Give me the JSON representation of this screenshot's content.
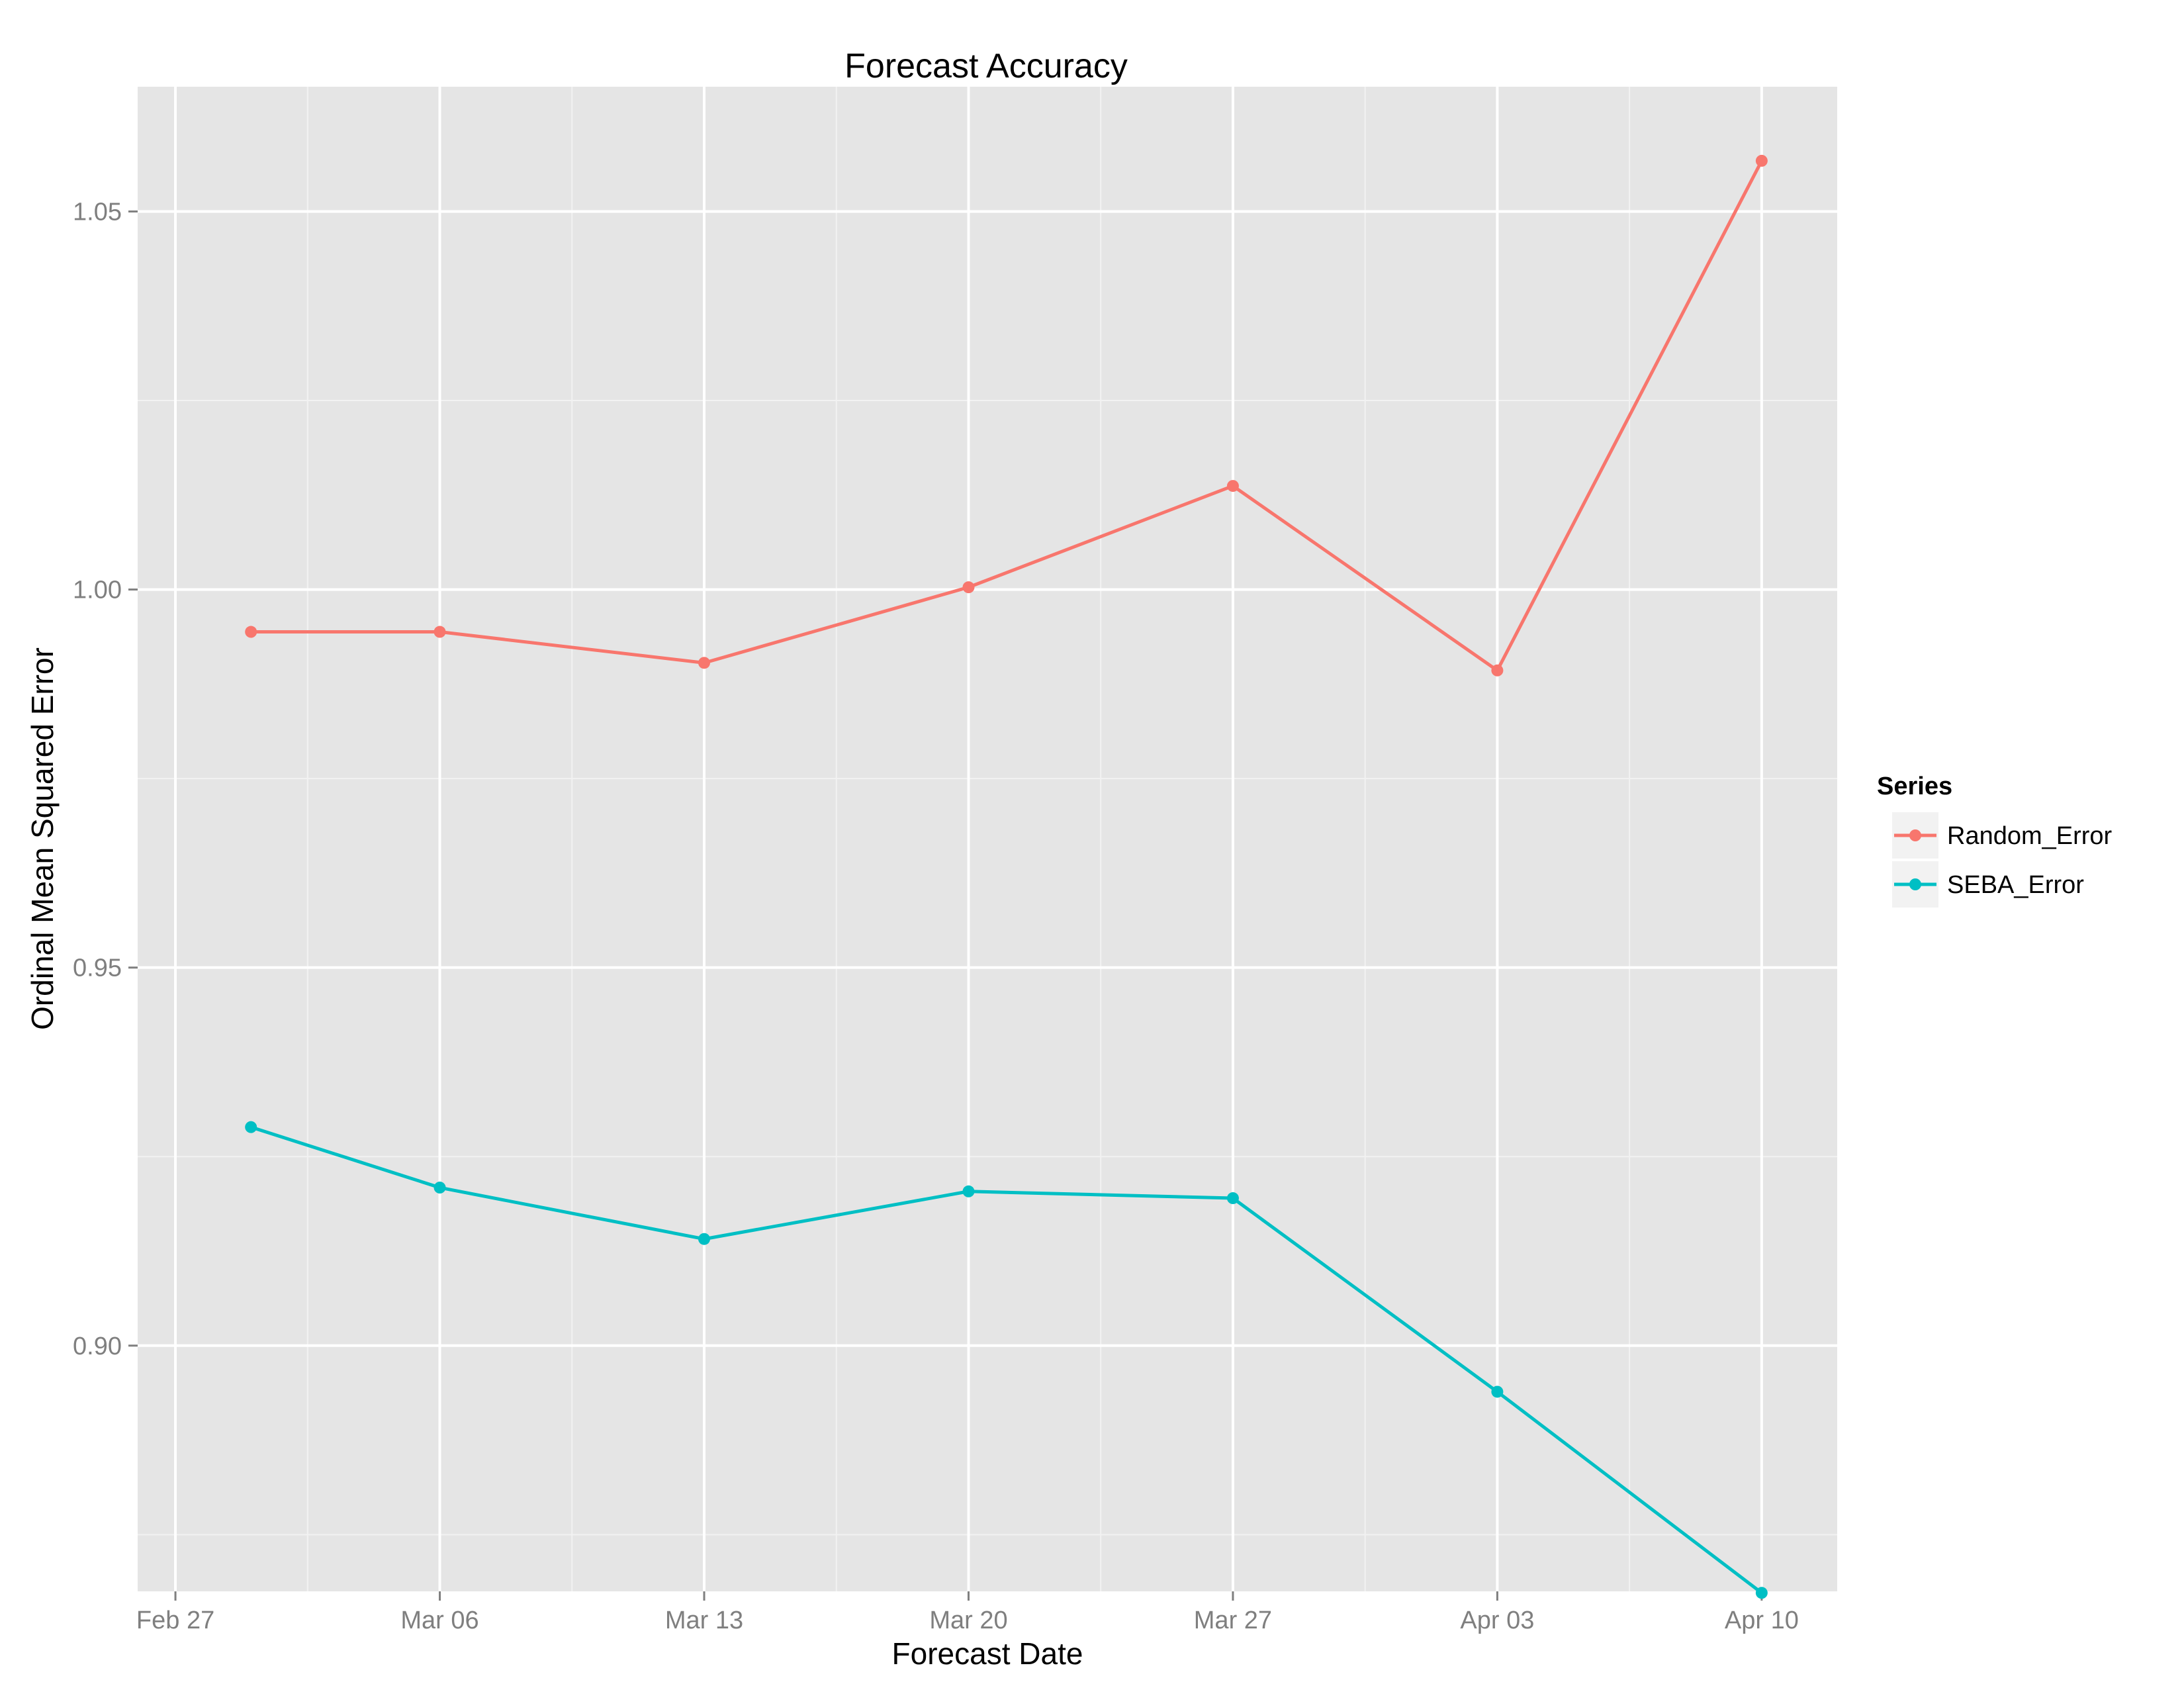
{
  "chart_data": {
    "type": "line",
    "title": "Forecast Accuracy",
    "xlabel": "Forecast Date",
    "ylabel": "Ordinal Mean Squared Error",
    "x_axis": {
      "type": "date",
      "range": [
        "2015-02-26",
        "2015-04-12"
      ],
      "ticks": [
        {
          "date": "2015-02-27",
          "label": "Feb 27"
        },
        {
          "date": "2015-03-06",
          "label": "Mar 06"
        },
        {
          "date": "2015-03-13",
          "label": "Mar 13"
        },
        {
          "date": "2015-03-20",
          "label": "Mar 20"
        },
        {
          "date": "2015-03-27",
          "label": "Mar 27"
        },
        {
          "date": "2015-04-03",
          "label": "Apr 03"
        },
        {
          "date": "2015-04-10",
          "label": "Apr 10"
        }
      ]
    },
    "y_axis": {
      "range": [
        0.8675,
        1.0665
      ],
      "ticks": [
        {
          "value": 0.9,
          "label": "0.90"
        },
        {
          "value": 0.95,
          "label": "0.95"
        },
        {
          "value": 1.0,
          "label": "1.00"
        },
        {
          "value": 1.05,
          "label": "1.05"
        }
      ]
    },
    "x": [
      "2015-03-01",
      "2015-03-06",
      "2015-03-13",
      "2015-03-20",
      "2015-03-27",
      "2015-04-03",
      "2015-04-10"
    ],
    "series": [
      {
        "name": "Random_Error",
        "color": "#F8766D",
        "values": [
          0.9944,
          0.9944,
          0.9903,
          1.0003,
          1.0137,
          0.9893,
          1.0567
        ]
      },
      {
        "name": "SEBA_Error",
        "color": "#00BFC4",
        "values": [
          0.9289,
          0.9209,
          0.9141,
          0.9204,
          0.9195,
          0.8939,
          0.8673
        ]
      }
    ],
    "grid": true,
    "legend": {
      "title": "Series",
      "position": "right"
    },
    "colors": {
      "panel_background": "#E5E5E5",
      "gridline": "#FFFFFF",
      "tick_label": "#7F7F7F"
    }
  }
}
